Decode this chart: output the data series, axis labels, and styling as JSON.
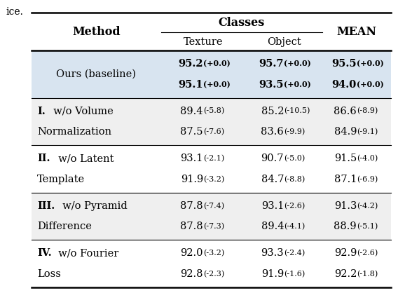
{
  "caption_prefix": "ice.",
  "col_header_main": "Classes",
  "col_sub_headers": [
    "Texture",
    "Object"
  ],
  "col_method": "Method",
  "col_mean": "MEAN",
  "rows": [
    {
      "method_bold": "",
      "method_normal": "Ours (baseline)",
      "method_line2": "",
      "r1": [
        "95.2",
        "95.7",
        "95.5"
      ],
      "d1": [
        "(+0.0)",
        "(+0.0)",
        "(+0.0)"
      ],
      "r2": [
        "95.1",
        "93.5",
        "94.0"
      ],
      "d2": [
        "(+0.0)",
        "(+0.0)",
        "(+0.0)"
      ],
      "data_bold": true,
      "bg": "#d8e4f0"
    },
    {
      "method_bold": "I.",
      "method_normal": "  w/o Volume",
      "method_line2": "Normalization",
      "r1": [
        "89.4",
        "85.2",
        "86.6"
      ],
      "d1": [
        "(-5.8)",
        "(-10.5)",
        "(-8.9)"
      ],
      "r2": [
        "87.5",
        "83.6",
        "84.9"
      ],
      "d2": [
        "(-7.6)",
        "(-9.9)",
        "(-9.1)"
      ],
      "data_bold": false,
      "bg": "#efefef"
    },
    {
      "method_bold": "II.",
      "method_normal": "  w/o Latent",
      "method_line2": "Template",
      "r1": [
        "93.1",
        "90.7",
        "91.5"
      ],
      "d1": [
        "(-2.1)",
        "(-5.0)",
        "(-4.0)"
      ],
      "r2": [
        "91.9",
        "84.7",
        "87.1"
      ],
      "d2": [
        "(-3.2)",
        "(-8.8)",
        "(-6.9)"
      ],
      "data_bold": false,
      "bg": "#ffffff"
    },
    {
      "method_bold": "III.",
      "method_normal": "  w/o Pyramid",
      "method_line2": "Difference",
      "r1": [
        "87.8",
        "93.1",
        "91.3"
      ],
      "d1": [
        "(-7.4)",
        "(-2.6)",
        "(-4.2)"
      ],
      "r2": [
        "87.8",
        "89.4",
        "88.9"
      ],
      "d2": [
        "(-7.3)",
        "(-4.1)",
        "(-5.1)"
      ],
      "data_bold": false,
      "bg": "#efefef"
    },
    {
      "method_bold": "IV.",
      "method_normal": "  w/o Fourier",
      "method_line2": "Loss",
      "r1": [
        "92.0",
        "93.3",
        "92.9"
      ],
      "d1": [
        "(-3.2)",
        "(-2.4)",
        "(-2.6)"
      ],
      "r2": [
        "92.8",
        "91.9",
        "92.2"
      ],
      "d2": [
        "(-2.3)",
        "(-1.6)",
        "(-1.8)"
      ],
      "data_bold": false,
      "bg": "#ffffff"
    }
  ],
  "font_size_main": 10.5,
  "font_size_small": 8.0,
  "font_size_header": 11.5
}
